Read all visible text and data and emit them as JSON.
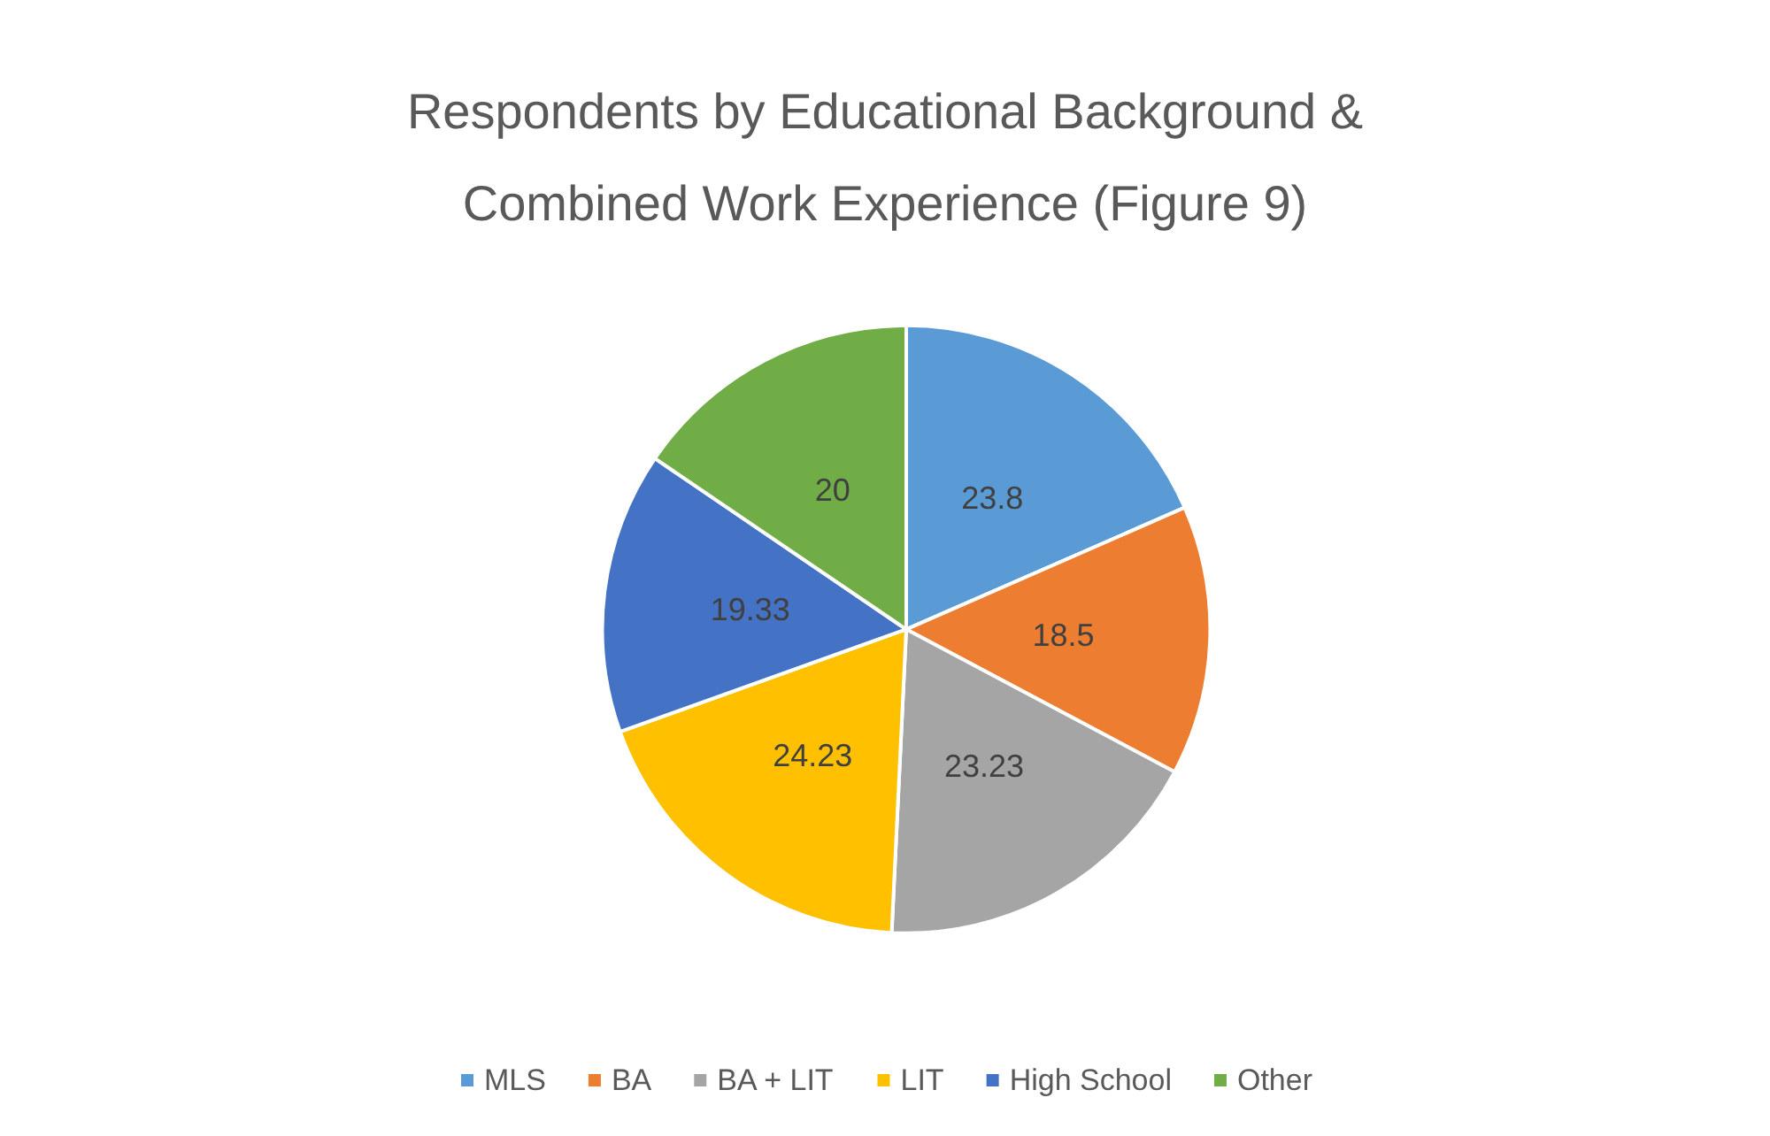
{
  "chart_data": {
    "type": "pie",
    "title": "Respondents by Educational Background &\nCombined Work Experience (Figure 9)",
    "categories": [
      "MLS",
      "BA",
      "BA + LIT",
      "LIT",
      "High School",
      "Other"
    ],
    "values": [
      23.8,
      18.5,
      23.23,
      24.23,
      19.33,
      20
    ],
    "colors": [
      "#5b9bd5",
      "#ed7d31",
      "#a5a5a5",
      "#ffc000",
      "#4472c4",
      "#70ad47"
    ],
    "data_labels": true,
    "legend": "bottom"
  }
}
